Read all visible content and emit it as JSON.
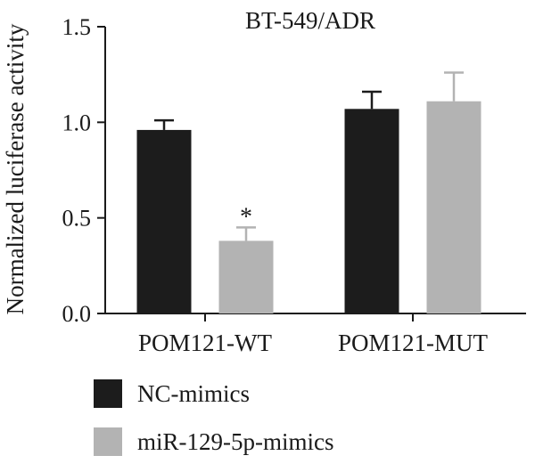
{
  "chart_data": {
    "type": "bar",
    "title": "BT-549/ADR",
    "ylabel": "Normalized luciferase activity",
    "xlabel": "",
    "ylim": [
      0,
      1.5
    ],
    "yticks": [
      "0.0",
      "0.5",
      "1.0",
      "1.5"
    ],
    "categories": [
      "POM121-WT",
      "POM121-MUT"
    ],
    "series": [
      {
        "name": "NC-mimics",
        "color": "#1c1c1c",
        "values": [
          0.96,
          1.07
        ],
        "errors": [
          0.05,
          0.09
        ]
      },
      {
        "name": "miR-129-5p-mimics",
        "color": "#b3b3b3",
        "values": [
          0.38,
          1.11
        ],
        "errors": [
          0.07,
          0.15
        ]
      }
    ],
    "annotations": [
      {
        "category": "POM121-WT",
        "series": "miR-129-5p-mimics",
        "text": "*"
      }
    ],
    "legend_position": "bottom-left",
    "grid": false
  }
}
